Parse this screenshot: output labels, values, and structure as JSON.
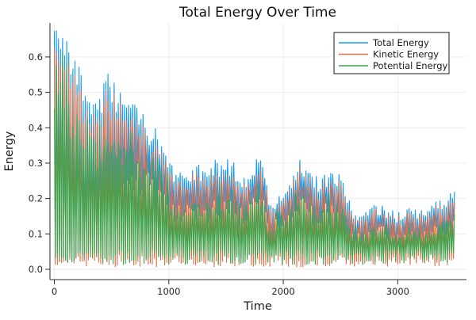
{
  "title": "Total Energy Over Time",
  "chart_data": {
    "type": "line",
    "title": "Total Energy Over Time",
    "xlabel": "Time",
    "ylabel": "Energy",
    "xlim": [
      -40,
      3600
    ],
    "ylim": [
      -0.03,
      0.7
    ],
    "x_ticks": [
      0,
      1000,
      2000,
      3000
    ],
    "y_ticks": [
      0.0,
      0.1,
      0.2,
      0.3,
      0.4,
      0.5,
      0.6
    ],
    "grid": true,
    "background": "#ffffff",
    "legend_position": "top-right",
    "series": [
      {
        "name": "Total Energy",
        "color": "#109bf3"
      },
      {
        "name": "Kinetic Energy",
        "color": "#e2714a"
      },
      {
        "name": "Potential Energy",
        "color": "#3da44d"
      }
    ],
    "envelopes": {
      "comment": "Dense noisy oscillation; series oscillate between ~0 and their upper envelope. Values read off the plot.",
      "x": [
        0,
        60,
        120,
        200,
        300,
        400,
        480,
        560,
        650,
        750,
        850,
        950,
        1050,
        1150,
        1250,
        1350,
        1450,
        1550,
        1650,
        1750,
        1820,
        1880,
        1950,
        2050,
        2130,
        2200,
        2300,
        2400,
        2500,
        2600,
        2700,
        2800,
        2900,
        3000,
        3100,
        3200,
        3300,
        3400,
        3500
      ],
      "total_energy_upper": [
        0.66,
        0.65,
        0.6,
        0.56,
        0.47,
        0.45,
        0.52,
        0.46,
        0.44,
        0.41,
        0.38,
        0.33,
        0.25,
        0.26,
        0.27,
        0.28,
        0.29,
        0.28,
        0.25,
        0.28,
        0.31,
        0.16,
        0.2,
        0.23,
        0.28,
        0.29,
        0.24,
        0.25,
        0.26,
        0.16,
        0.145,
        0.17,
        0.16,
        0.145,
        0.17,
        0.155,
        0.165,
        0.19,
        0.21
      ],
      "potential_energy_upper": [
        0.46,
        0.46,
        0.43,
        0.4,
        0.34,
        0.32,
        0.36,
        0.32,
        0.31,
        0.29,
        0.27,
        0.23,
        0.16,
        0.17,
        0.175,
        0.18,
        0.19,
        0.18,
        0.16,
        0.19,
        0.21,
        0.1,
        0.13,
        0.15,
        0.185,
        0.19,
        0.15,
        0.16,
        0.17,
        0.1,
        0.09,
        0.11,
        0.105,
        0.09,
        0.11,
        0.1,
        0.105,
        0.125,
        0.14
      ],
      "kinetic_upper_fraction_of_total": 0.91,
      "lower_bound": 0.01,
      "oscillation_period_time_units": 22
    }
  }
}
